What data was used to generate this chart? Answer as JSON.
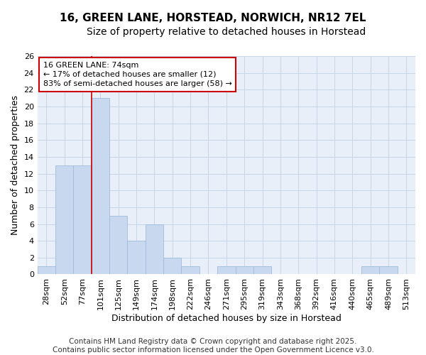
{
  "title": "16, GREEN LANE, HORSTEAD, NORWICH, NR12 7EL",
  "subtitle": "Size of property relative to detached houses in Horstead",
  "xlabel": "Distribution of detached houses by size in Horstead",
  "ylabel": "Number of detached properties",
  "categories": [
    "28sqm",
    "52sqm",
    "77sqm",
    "101sqm",
    "125sqm",
    "149sqm",
    "174sqm",
    "198sqm",
    "222sqm",
    "246sqm",
    "271sqm",
    "295sqm",
    "319sqm",
    "343sqm",
    "368sqm",
    "392sqm",
    "416sqm",
    "440sqm",
    "465sqm",
    "489sqm",
    "513sqm"
  ],
  "values": [
    1,
    13,
    13,
    21,
    7,
    4,
    6,
    2,
    1,
    0,
    1,
    1,
    1,
    0,
    0,
    0,
    0,
    0,
    1,
    1,
    0
  ],
  "bar_color": "#c8d9ef",
  "bar_edge_color": "#a0bbda",
  "vline_x_index": 2,
  "vline_color": "#cc0000",
  "annotation_title": "16 GREEN LANE: 74sqm",
  "annotation_line1": "← 17% of detached houses are smaller (12)",
  "annotation_line2": "83% of semi-detached houses are larger (58) →",
  "annotation_box_color": "#cc0000",
  "ylim": [
    0,
    26
  ],
  "yticks": [
    0,
    2,
    4,
    6,
    8,
    10,
    12,
    14,
    16,
    18,
    20,
    22,
    24,
    26
  ],
  "grid_color": "#c8d4e8",
  "bg_color": "#e8eff8",
  "footer1": "Contains HM Land Registry data © Crown copyright and database right 2025.",
  "footer2": "Contains public sector information licensed under the Open Government Licence v3.0.",
  "title_fontsize": 11,
  "subtitle_fontsize": 10,
  "xlabel_fontsize": 9,
  "ylabel_fontsize": 9,
  "tick_fontsize": 8,
  "annot_fontsize": 8,
  "footer_fontsize": 7.5
}
